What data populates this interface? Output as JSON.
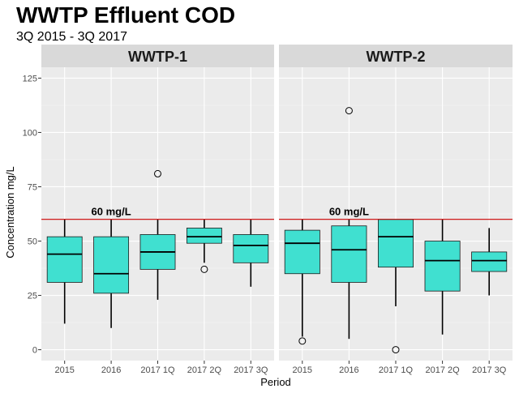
{
  "chart_data": {
    "type": "boxplot",
    "title": "WWTP Effluent COD",
    "subtitle": "3Q 2015 - 3Q 2017",
    "xlabel": "Period",
    "ylabel": "Concentration mg/L",
    "ylim": [
      -5,
      130
    ],
    "yticks": [
      0,
      25,
      50,
      75,
      100,
      125
    ],
    "categories": [
      "2015",
      "2016",
      "2017 1Q",
      "2017 2Q",
      "2017 3Q"
    ],
    "reference_line": {
      "value": 60,
      "label": "60 mg/L",
      "color": "#cc0000"
    },
    "box_fill": "#40e0d0",
    "panel_background": "#ebebeb",
    "strip_background": "#d9d9d9",
    "facets": [
      {
        "name": "WWTP-1",
        "boxes": [
          {
            "category": "2015",
            "min": 12,
            "q1": 31,
            "median": 44,
            "q3": 52,
            "max": 60,
            "outliers": []
          },
          {
            "category": "2016",
            "min": 10,
            "q1": 26,
            "median": 35,
            "q3": 52,
            "max": 60,
            "outliers": []
          },
          {
            "category": "2017 1Q",
            "min": 23,
            "q1": 37,
            "median": 45,
            "q3": 53,
            "max": 60,
            "outliers": [
              81
            ]
          },
          {
            "category": "2017 2Q",
            "min": 40,
            "q1": 49,
            "median": 52,
            "q3": 56,
            "max": 60,
            "outliers": [
              37
            ]
          },
          {
            "category": "2017 3Q",
            "min": 29,
            "q1": 40,
            "median": 48,
            "q3": 53,
            "max": 60,
            "outliers": []
          }
        ]
      },
      {
        "name": "WWTP-2",
        "boxes": [
          {
            "category": "2015",
            "min": 6,
            "q1": 35,
            "median": 49,
            "q3": 55,
            "max": 60,
            "outliers": [
              4
            ]
          },
          {
            "category": "2016",
            "min": 5,
            "q1": 31,
            "median": 46,
            "q3": 57,
            "max": 60,
            "outliers": [
              110
            ]
          },
          {
            "category": "2017 1Q",
            "min": 20,
            "q1": 38,
            "median": 52,
            "q3": 60,
            "max": 60,
            "outliers": [
              0
            ]
          },
          {
            "category": "2017 2Q",
            "min": 7,
            "q1": 27,
            "median": 41,
            "q3": 50,
            "max": 60,
            "outliers": []
          },
          {
            "category": "2017 3Q",
            "min": 25,
            "q1": 36,
            "median": 41,
            "q3": 45,
            "max": 56,
            "outliers": []
          }
        ]
      }
    ]
  }
}
